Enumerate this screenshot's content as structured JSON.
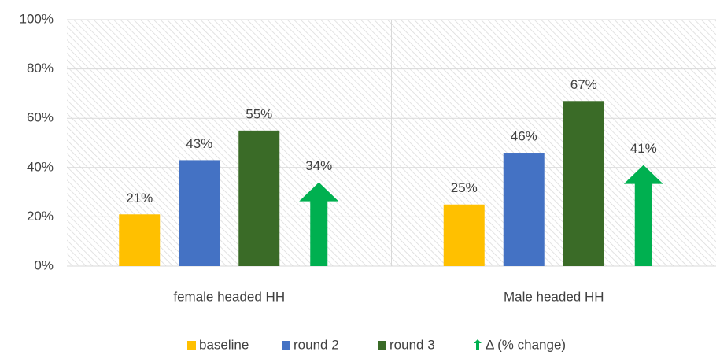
{
  "chart_data": {
    "type": "bar",
    "categories": [
      "female headed HH",
      "Male headed HH"
    ],
    "series": [
      {
        "name": "baseline",
        "color": "#ffc000",
        "values": [
          21,
          25
        ],
        "value_labels": [
          "21%",
          "25%"
        ]
      },
      {
        "name": "round 2",
        "color": "#4472c4",
        "values": [
          43,
          46
        ],
        "value_labels": [
          "43%",
          "46%"
        ]
      },
      {
        "name": "round 3",
        "color": "#3a6b27",
        "values": [
          55,
          67
        ],
        "value_labels": [
          "55%",
          "67%"
        ]
      },
      {
        "name": "Δ (% change)",
        "color": "#00b050",
        "marker": "arrow",
        "values": [
          34,
          41
        ],
        "value_labels": [
          "34%",
          "41%"
        ]
      }
    ],
    "ylim": [
      0,
      100
    ],
    "yticks": [
      {
        "value": 0,
        "label": "0%"
      },
      {
        "value": 20,
        "label": "20%"
      },
      {
        "value": 40,
        "label": "40%"
      },
      {
        "value": 60,
        "label": "60%"
      },
      {
        "value": 80,
        "label": "80%"
      },
      {
        "value": 100,
        "label": "100%"
      }
    ],
    "grid": true,
    "legend": "bottom"
  }
}
